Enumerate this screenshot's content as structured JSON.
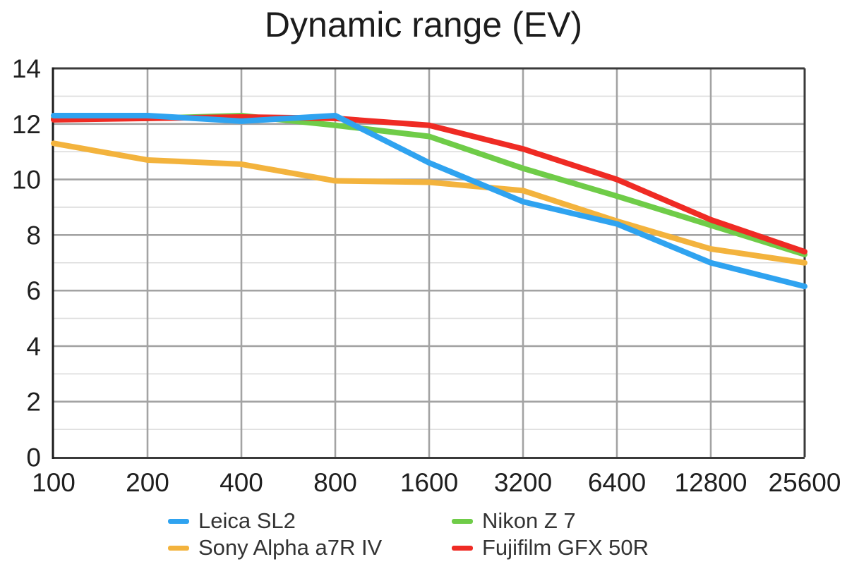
{
  "title": "Dynamic range (EV)",
  "chart_data": {
    "type": "line",
    "title": "Dynamic range (EV)",
    "xlabel": "",
    "ylabel": "",
    "x_scale": "iso-stops (log2, evenly spaced)",
    "categories": [
      "100",
      "200",
      "400",
      "800",
      "1600",
      "3200",
      "6400",
      "12800",
      "25600"
    ],
    "ylim": [
      0,
      14
    ],
    "y_major_ticks": [
      0,
      2,
      4,
      6,
      8,
      10,
      12,
      14
    ],
    "y_minor_ticks": [
      1,
      3,
      5,
      7,
      9,
      11,
      13
    ],
    "grid": true,
    "legend_position": "bottom",
    "series": [
      {
        "name": "Leica SL2",
        "color": "#2FA3F0",
        "z": 4,
        "values": [
          12.3,
          12.3,
          12.1,
          12.3,
          10.6,
          9.2,
          8.4,
          7.0,
          6.15
        ]
      },
      {
        "name": "Sony Alpha a7R IV",
        "color": "#F3B33D",
        "z": 3,
        "values": [
          11.3,
          10.7,
          10.55,
          9.95,
          9.9,
          9.6,
          8.5,
          7.5,
          7.0
        ]
      },
      {
        "name": "Nikon Z 7",
        "color": "#6FCC48",
        "z": 1,
        "values": [
          12.2,
          12.2,
          12.3,
          11.95,
          11.55,
          10.4,
          9.4,
          8.35,
          7.3
        ]
      },
      {
        "name": "Fujifilm GFX 50R",
        "color": "#EF2B24",
        "z": 2,
        "values": [
          12.15,
          12.2,
          12.25,
          12.2,
          11.95,
          11.1,
          10.0,
          8.55,
          7.4
        ]
      }
    ]
  },
  "legend": {
    "items": [
      {
        "label": "Leica SL2",
        "color": "#2FA3F0"
      },
      {
        "label": "Nikon Z 7",
        "color": "#6FCC48"
      },
      {
        "label": "Sony Alpha a7R IV",
        "color": "#F3B33D"
      },
      {
        "label": "Fujifilm GFX 50R",
        "color": "#EF2B24"
      }
    ]
  },
  "style": {
    "minor_grid_color": "#dcdcdc",
    "major_grid_color": "#a3a3a3",
    "border_color": "#3a3a3a",
    "left_axis_color": "#1a1a1a",
    "text_color": "#1f1f1f"
  }
}
